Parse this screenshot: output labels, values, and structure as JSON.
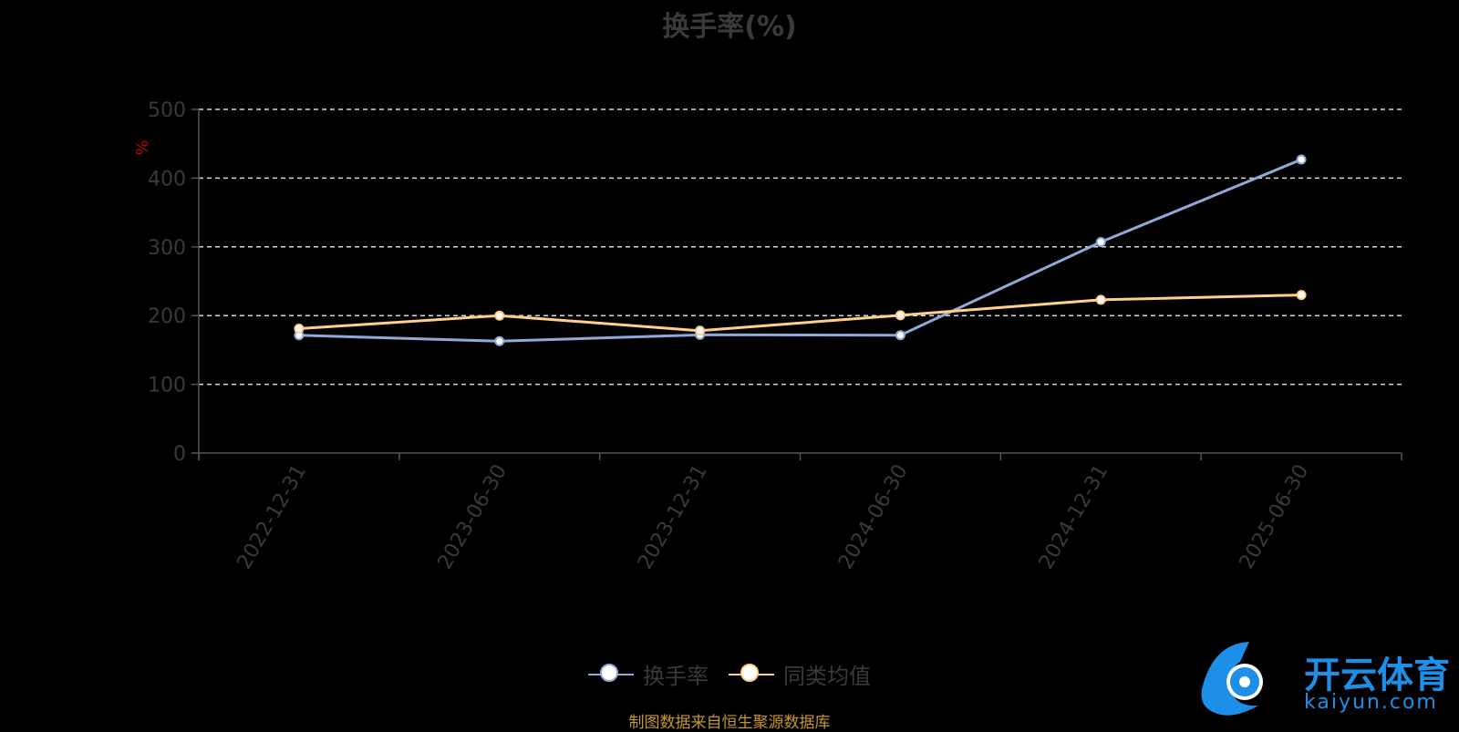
{
  "chart_data": {
    "type": "line",
    "title": "换手率(%)",
    "ylabel": "%",
    "xlabel": "",
    "x": [
      "2022-12-31",
      "2023-06-30",
      "2023-12-31",
      "2024-06-30",
      "2024-12-31",
      "2025-06-30"
    ],
    "ylim": [
      0,
      500
    ],
    "yticks": [
      0,
      100,
      200,
      300,
      400,
      500
    ],
    "grid": true,
    "legend_position": "bottom",
    "series": [
      {
        "name": "换手率",
        "values": [
          171.4,
          162.8,
          172.0,
          171.5,
          307.0,
          427.0
        ],
        "color": "#8fa9d9"
      },
      {
        "name": "同类均值",
        "values": [
          181.0,
          200.0,
          178.0,
          200.5,
          223.0,
          230.0
        ],
        "color": "#ffcf8a"
      }
    ]
  },
  "legend": [
    {
      "label": "换手率",
      "color": "#8fa9d9"
    },
    {
      "label": "同类均值",
      "color": "#ffcf8a"
    }
  ],
  "source_note": "制图数据来自恒生聚源数据库",
  "logo": {
    "name": "开云体育",
    "domain": "kaiyun.com",
    "color": "#1e8fe6"
  }
}
